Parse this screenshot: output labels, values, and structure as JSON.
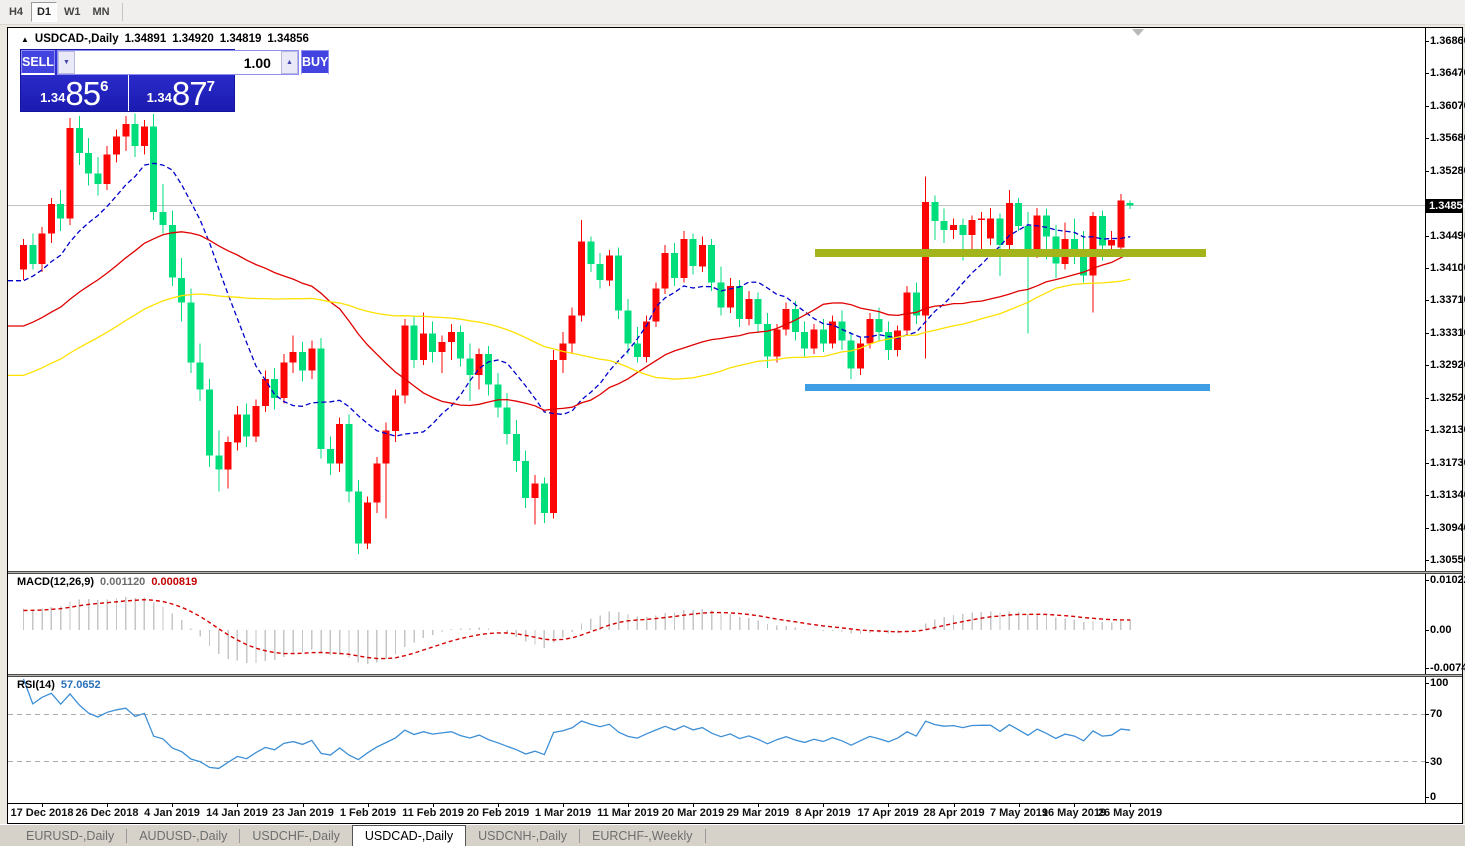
{
  "toolbar": {
    "timeframes": [
      {
        "label": "H4",
        "active": false
      },
      {
        "label": "D1",
        "active": true
      },
      {
        "label": "W1",
        "active": false
      },
      {
        "label": "MN",
        "active": false
      }
    ]
  },
  "chart": {
    "title": {
      "symbol": "USDCAD-,Daily",
      "open": "1.34891",
      "high": "1.34920",
      "low": "1.34819",
      "close": "1.34856"
    },
    "trade_panel": {
      "sell_label": "SELL",
      "buy_label": "BUY",
      "volume": "1.00",
      "sell_price": {
        "prefix": "1.34",
        "big": "85",
        "sup": "6"
      },
      "buy_price": {
        "prefix": "1.34",
        "big": "87",
        "sup": "7"
      }
    }
  },
  "chart_data": {
    "type": "candlestick",
    "symbol": "USDCAD-,Daily",
    "timeframe": "Daily",
    "current_price": 1.34856,
    "price_axis_ticks": [
      "1.36860",
      "1.36470",
      "1.36070",
      "1.35680",
      "1.35280",
      "1.34490",
      "1.34100",
      "1.33710",
      "1.33310",
      "1.32920",
      "1.32520",
      "1.32130",
      "1.31730",
      "1.31340",
      "1.30940",
      "1.30550"
    ],
    "current_price_label": "1.34856",
    "date_labels": [
      {
        "text": "17 Dec 2018",
        "bar": 2
      },
      {
        "text": "26 Dec 2018",
        "bar": 9
      },
      {
        "text": "4 Jan 2019",
        "bar": 16
      },
      {
        "text": "14 Jan 2019",
        "bar": 23
      },
      {
        "text": "23 Jan 2019",
        "bar": 30
      },
      {
        "text": "1 Feb 2019",
        "bar": 37
      },
      {
        "text": "11 Feb 2019",
        "bar": 44
      },
      {
        "text": "20 Feb 2019",
        "bar": 51
      },
      {
        "text": "1 Mar 2019",
        "bar": 58
      },
      {
        "text": "11 Mar 2019",
        "bar": 65
      },
      {
        "text": "20 Mar 2019",
        "bar": 72
      },
      {
        "text": "29 Mar 2019",
        "bar": 79
      },
      {
        "text": "8 Apr 2019",
        "bar": 86
      },
      {
        "text": "17 Apr 2019",
        "bar": 93
      },
      {
        "text": "28 Apr 2019",
        "bar": 100
      },
      {
        "text": "7 May 2019",
        "bar": 107
      },
      {
        "text": "16 May 2019",
        "bar": 113
      },
      {
        "text": "26 May 2019",
        "bar": 119
      }
    ],
    "candles": [
      [
        1.3408,
        1.3445,
        1.3395,
        1.3438
      ],
      [
        1.3438,
        1.3452,
        1.3408,
        1.3415
      ],
      [
        1.3415,
        1.346,
        1.3405,
        1.3452
      ],
      [
        1.3452,
        1.3495,
        1.344,
        1.3488
      ],
      [
        1.3488,
        1.3505,
        1.3455,
        1.347
      ],
      [
        1.347,
        1.3592,
        1.3462,
        1.358
      ],
      [
        1.358,
        1.3595,
        1.3535,
        1.355
      ],
      [
        1.355,
        1.3568,
        1.351,
        1.3525
      ],
      [
        1.3525,
        1.3545,
        1.3498,
        1.3512
      ],
      [
        1.3512,
        1.3558,
        1.3505,
        1.3548
      ],
      [
        1.3548,
        1.3578,
        1.3538,
        1.357
      ],
      [
        1.357,
        1.3595,
        1.3552,
        1.3585
      ],
      [
        1.3585,
        1.3598,
        1.3545,
        1.3558
      ],
      [
        1.3558,
        1.359,
        1.3548,
        1.3582
      ],
      [
        1.3582,
        1.3597,
        1.3468,
        1.3478
      ],
      [
        1.3478,
        1.3512,
        1.3452,
        1.3462
      ],
      [
        1.3462,
        1.348,
        1.3388,
        1.3398
      ],
      [
        1.3398,
        1.3422,
        1.3345,
        1.3368
      ],
      [
        1.3368,
        1.3385,
        1.3282,
        1.3295
      ],
      [
        1.3295,
        1.3318,
        1.3248,
        1.3262
      ],
      [
        1.3262,
        1.3275,
        1.3168,
        1.3182
      ],
      [
        1.3182,
        1.3212,
        1.3138,
        1.3165
      ],
      [
        1.3165,
        1.3205,
        1.3142,
        1.3198
      ],
      [
        1.3198,
        1.3242,
        1.3188,
        1.3232
      ],
      [
        1.3232,
        1.3245,
        1.3192,
        1.3205
      ],
      [
        1.3205,
        1.325,
        1.3198,
        1.3242
      ],
      [
        1.3242,
        1.3285,
        1.3235,
        1.3275
      ],
      [
        1.3275,
        1.3288,
        1.3238,
        1.3252
      ],
      [
        1.3252,
        1.3305,
        1.3245,
        1.3295
      ],
      [
        1.3295,
        1.3328,
        1.3282,
        1.3308
      ],
      [
        1.3308,
        1.332,
        1.3272,
        1.3285
      ],
      [
        1.3285,
        1.3322,
        1.3275,
        1.3312
      ],
      [
        1.3312,
        1.3325,
        1.3178,
        1.319
      ],
      [
        1.319,
        1.3205,
        1.3158,
        1.3172
      ],
      [
        1.3172,
        1.3228,
        1.3162,
        1.322
      ],
      [
        1.322,
        1.3232,
        1.3125,
        1.3138
      ],
      [
        1.3138,
        1.3152,
        1.3062,
        1.3075
      ],
      [
        1.3075,
        1.3132,
        1.3068,
        1.3125
      ],
      [
        1.3125,
        1.318,
        1.3112,
        1.3172
      ],
      [
        1.3172,
        1.3222,
        1.3105,
        1.3212
      ],
      [
        1.3212,
        1.3262,
        1.3198,
        1.3255
      ],
      [
        1.3255,
        1.3348,
        1.3245,
        1.334
      ],
      [
        1.334,
        1.3352,
        1.3288,
        1.3298
      ],
      [
        1.3298,
        1.3356,
        1.3292,
        1.333
      ],
      [
        1.333,
        1.3345,
        1.3295,
        1.3308
      ],
      [
        1.3308,
        1.3328,
        1.3282,
        1.332
      ],
      [
        1.332,
        1.3342,
        1.3298,
        1.3332
      ],
      [
        1.3332,
        1.334,
        1.329,
        1.33
      ],
      [
        1.33,
        1.3318,
        1.3248,
        1.328
      ],
      [
        1.328,
        1.3312,
        1.3262,
        1.3305
      ],
      [
        1.3305,
        1.3315,
        1.3255,
        1.3268
      ],
      [
        1.3268,
        1.3282,
        1.3228,
        1.324
      ],
      [
        1.324,
        1.3258,
        1.3195,
        1.3208
      ],
      [
        1.3208,
        1.3225,
        1.3162,
        1.3175
      ],
      [
        1.3175,
        1.3188,
        1.3118,
        1.313
      ],
      [
        1.313,
        1.3158,
        1.3098,
        1.3148
      ],
      [
        1.3148,
        1.3155,
        1.31,
        1.3112
      ],
      [
        1.3112,
        1.331,
        1.3105,
        1.3298
      ],
      [
        1.3298,
        1.3332,
        1.3282,
        1.3318
      ],
      [
        1.3318,
        1.3362,
        1.3305,
        1.3352
      ],
      [
        1.3352,
        1.3468,
        1.3345,
        1.3442
      ],
      [
        1.3442,
        1.3448,
        1.3405,
        1.3415
      ],
      [
        1.3415,
        1.3428,
        1.3385,
        1.3395
      ],
      [
        1.3395,
        1.3432,
        1.3388,
        1.3425
      ],
      [
        1.3425,
        1.3435,
        1.3348,
        1.3358
      ],
      [
        1.3358,
        1.3372,
        1.3305,
        1.3318
      ],
      [
        1.3318,
        1.3338,
        1.3295,
        1.3302
      ],
      [
        1.3302,
        1.3352,
        1.3295,
        1.3345
      ],
      [
        1.3345,
        1.3392,
        1.3338,
        1.3385
      ],
      [
        1.3385,
        1.3438,
        1.3378,
        1.3428
      ],
      [
        1.3428,
        1.344,
        1.3388,
        1.3398
      ],
      [
        1.3398,
        1.3455,
        1.3392,
        1.3445
      ],
      [
        1.3445,
        1.3452,
        1.3402,
        1.3412
      ],
      [
        1.3412,
        1.3448,
        1.3405,
        1.3438
      ],
      [
        1.3438,
        1.3445,
        1.3382,
        1.3392
      ],
      [
        1.3392,
        1.3412,
        1.3352,
        1.3362
      ],
      [
        1.3362,
        1.3398,
        1.3355,
        1.3388
      ],
      [
        1.3388,
        1.3395,
        1.3338,
        1.3348
      ],
      [
        1.3348,
        1.3382,
        1.334,
        1.3372
      ],
      [
        1.3372,
        1.338,
        1.3332,
        1.3342
      ],
      [
        1.3342,
        1.3355,
        1.3288,
        1.3302
      ],
      [
        1.3302,
        1.3342,
        1.3295,
        1.3335
      ],
      [
        1.3335,
        1.3368,
        1.3328,
        1.336
      ],
      [
        1.336,
        1.337,
        1.3322,
        1.3332
      ],
      [
        1.3332,
        1.3345,
        1.3302,
        1.3312
      ],
      [
        1.3312,
        1.3342,
        1.3305,
        1.3335
      ],
      [
        1.3335,
        1.3348,
        1.3308,
        1.3318
      ],
      [
        1.3318,
        1.3352,
        1.3312,
        1.3345
      ],
      [
        1.3345,
        1.3358,
        1.331,
        1.3322
      ],
      [
        1.3322,
        1.3332,
        1.3275,
        1.3288
      ],
      [
        1.3288,
        1.3325,
        1.328,
        1.3318
      ],
      [
        1.3318,
        1.3355,
        1.3312,
        1.3348
      ],
      [
        1.3348,
        1.3362,
        1.3322,
        1.3332
      ],
      [
        1.3332,
        1.3345,
        1.3298,
        1.331
      ],
      [
        1.331,
        1.334,
        1.3302,
        1.3334
      ],
      [
        1.3334,
        1.3388,
        1.3328,
        1.338
      ],
      [
        1.338,
        1.3392,
        1.3342,
        1.3352
      ],
      [
        1.3352,
        1.3521,
        1.33,
        1.349
      ],
      [
        1.349,
        1.3498,
        1.3444,
        1.3467
      ],
      [
        1.3467,
        1.3482,
        1.344,
        1.3456
      ],
      [
        1.3456,
        1.347,
        1.3445,
        1.3462
      ],
      [
        1.3462,
        1.347,
        1.3419,
        1.345
      ],
      [
        1.345,
        1.3474,
        1.3428,
        1.3468
      ],
      [
        1.3468,
        1.3478,
        1.3432,
        1.347
      ],
      [
        1.3446,
        1.3483,
        1.3438,
        1.347
      ],
      [
        1.347,
        1.3476,
        1.34,
        1.3438
      ],
      [
        1.3438,
        1.3505,
        1.343,
        1.3489
      ],
      [
        1.3489,
        1.3495,
        1.3455,
        1.3461
      ],
      [
        1.3461,
        1.3478,
        1.333,
        1.3428
      ],
      [
        1.3428,
        1.3483,
        1.3422,
        1.3474
      ],
      [
        1.3474,
        1.3482,
        1.342,
        1.3448
      ],
      [
        1.3448,
        1.3462,
        1.3398,
        1.3415
      ],
      [
        1.3415,
        1.3465,
        1.3408,
        1.3445
      ],
      [
        1.3445,
        1.347,
        1.3415,
        1.3432
      ],
      [
        1.3432,
        1.3455,
        1.3392,
        1.3401
      ],
      [
        1.3401,
        1.3478,
        1.3356,
        1.3473
      ],
      [
        1.3473,
        1.348,
        1.3419,
        1.3437
      ],
      [
        1.3437,
        1.3455,
        1.3428,
        1.3444
      ],
      [
        1.3435,
        1.35,
        1.343,
        1.3492
      ],
      [
        1.34891,
        1.3492,
        1.34819,
        1.34856
      ]
    ],
    "colors": {
      "bull": "#FB0505",
      "bear": "#00DE7C",
      "price_line": "#C0C0C0"
    },
    "moving_averages": [
      {
        "period": 12,
        "color": "#0000CC",
        "style": "dash"
      },
      {
        "period": 30,
        "color": "#E00000",
        "style": "solid"
      },
      {
        "period": 55,
        "color": "#FFE100",
        "style": "solid"
      }
    ],
    "hlines": [
      {
        "name": "resistance-band",
        "price": 1.3428,
        "bar_start": 85.5,
        "bar_end": 127.5,
        "thickness": 8,
        "color": "#A3B51A"
      },
      {
        "name": "support-band",
        "price": 1.3265,
        "bar_start": 84.4,
        "bar_end": 128.0,
        "thickness": 7,
        "color": "#3E9EE3"
      }
    ],
    "macd": {
      "label": "MACD(12,26,9)",
      "fast": 12,
      "slow": 26,
      "signal": 9,
      "value_main": "0.001120",
      "value_signal": "0.000819",
      "axis_max": "0.010229",
      "axis_zero": "0.00",
      "axis_min": "-0.007477",
      "hist_color": "#C6C6C6",
      "signal_color": "#D40000"
    },
    "rsi": {
      "label": "RSI(14)",
      "period": 14,
      "value": "57.0652",
      "levels": [
        "100",
        "70",
        "30",
        "0"
      ],
      "line_color": "#3E8FD6",
      "level_color": "#ABABAB"
    }
  },
  "tabs": [
    {
      "label": "EURUSD-,Daily",
      "active": false
    },
    {
      "label": "AUDUSD-,Daily",
      "active": false
    },
    {
      "label": "USDCHF-,Daily",
      "active": false
    },
    {
      "label": "USDCAD-,Daily",
      "active": true
    },
    {
      "label": "USDCNH-,Daily",
      "active": false
    },
    {
      "label": "EURCHF-,Weekly",
      "active": false
    }
  ]
}
